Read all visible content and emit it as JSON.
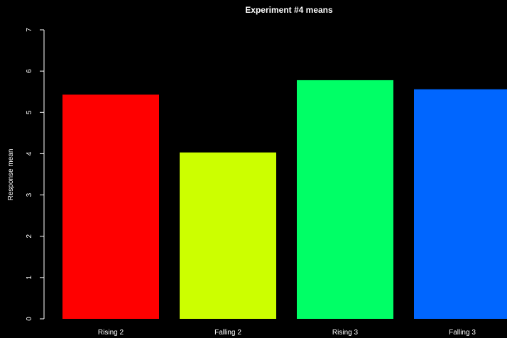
{
  "chart_data": {
    "type": "bar",
    "title": "Experiment #4 means",
    "xlabel": "",
    "ylabel": "Response mean",
    "ylim": [
      0,
      7
    ],
    "yticks": [
      "0",
      "1",
      "2",
      "3",
      "4",
      "5",
      "6",
      "7"
    ],
    "categories": [
      "Rising 2",
      "Falling 2",
      "Rising 3",
      "Falling 3"
    ],
    "values": [
      5.43,
      4.03,
      5.78,
      5.56
    ],
    "colors": [
      "#ff0000",
      "#ccff00",
      "#00ff66",
      "#0066ff"
    ],
    "background": "#000000",
    "foreground": "#ffffff",
    "grid": false,
    "legend": "none"
  }
}
